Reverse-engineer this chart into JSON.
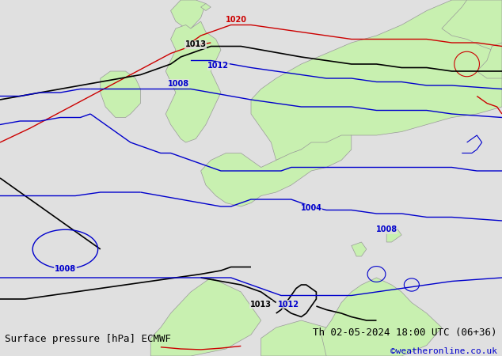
{
  "title_left": "Surface pressure [hPa] ECMWF",
  "title_right": "Th 02-05-2024 18:00 UTC (06+36)",
  "copyright": "©weatheronline.co.uk",
  "bg_color": "#e0e0e0",
  "land_color": "#c8f0b0",
  "coast_color": "#999999",
  "red_color": "#cc0000",
  "blue_color": "#0000cc",
  "black_color": "#000000",
  "text_color_left": "#000000",
  "text_color_right": "#000000",
  "copyright_color": "#0000cc",
  "font_size_bottom": 9,
  "font_size_label": 7,
  "bottom_bar_color": "#ffffff"
}
